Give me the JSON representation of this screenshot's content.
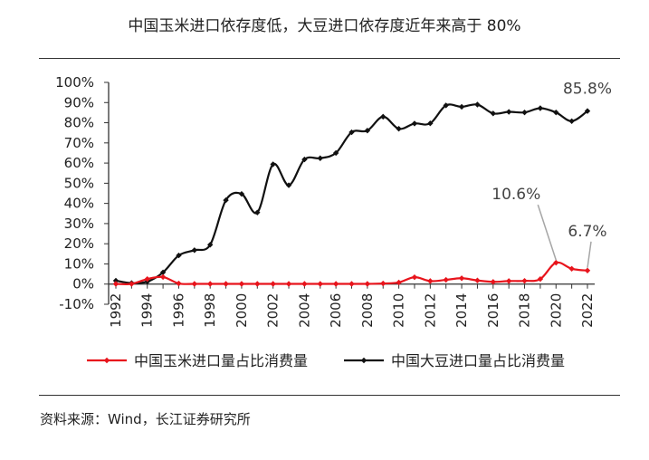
{
  "title": "中国玉米进口依存度低，大豆进口依存度近年来高于 80%",
  "source": "资料来源：Wind，长江证券研究所",
  "chart_data": {
    "type": "line",
    "x": [
      1992,
      1993,
      1994,
      1995,
      1996,
      1997,
      1998,
      1999,
      2000,
      2001,
      2002,
      2003,
      2004,
      2005,
      2006,
      2007,
      2008,
      2009,
      2010,
      2011,
      2012,
      2013,
      2014,
      2015,
      2016,
      2017,
      2018,
      2019,
      2020,
      2021,
      2022
    ],
    "x_ticks": [
      "1992",
      "1994",
      "1996",
      "1998",
      "2000",
      "2002",
      "2004",
      "2006",
      "2008",
      "2010",
      "2012",
      "2014",
      "2016",
      "2018",
      "2020",
      "2022"
    ],
    "y_ticks": [
      "100%",
      "90%",
      "80%",
      "70%",
      "60%",
      "50%",
      "40%",
      "30%",
      "20%",
      "10%",
      "0%",
      "-10%"
    ],
    "ylim": [
      -10,
      100
    ],
    "series": [
      {
        "name": "中国玉米进口量占比消费量",
        "color": "#e8141c",
        "values": [
          0.1,
          0.1,
          2.5,
          3.5,
          0.3,
          0.1,
          0.1,
          0.1,
          0.1,
          0.1,
          0.1,
          0.1,
          0.1,
          0.1,
          0.1,
          0.1,
          0.1,
          0.3,
          0.8,
          3.4,
          1.5,
          2.1,
          2.9,
          1.8,
          1.1,
          1.5,
          1.6,
          2.5,
          10.6,
          7.6,
          6.7
        ]
      },
      {
        "name": "中国大豆进口量占比消费量",
        "color": "#111111",
        "values": [
          1.7,
          0.5,
          1.2,
          5.8,
          14.2,
          16.8,
          19.5,
          41.6,
          44.7,
          35.5,
          59.4,
          49.0,
          61.8,
          62.4,
          65.0,
          75.3,
          76.1,
          83.0,
          77.0,
          79.6,
          79.7,
          88.6,
          87.9,
          89.0,
          84.6,
          85.4,
          85.1,
          87.2,
          85.1,
          80.8,
          85.8
        ]
      }
    ],
    "annotations": [
      {
        "text": "85.8%",
        "series": 1,
        "x": 2022
      },
      {
        "text": "10.6%",
        "series": 0,
        "x": 2020
      },
      {
        "text": "6.7%",
        "series": 0,
        "x": 2022
      }
    ],
    "legend_position": "bottom",
    "grid": false
  }
}
